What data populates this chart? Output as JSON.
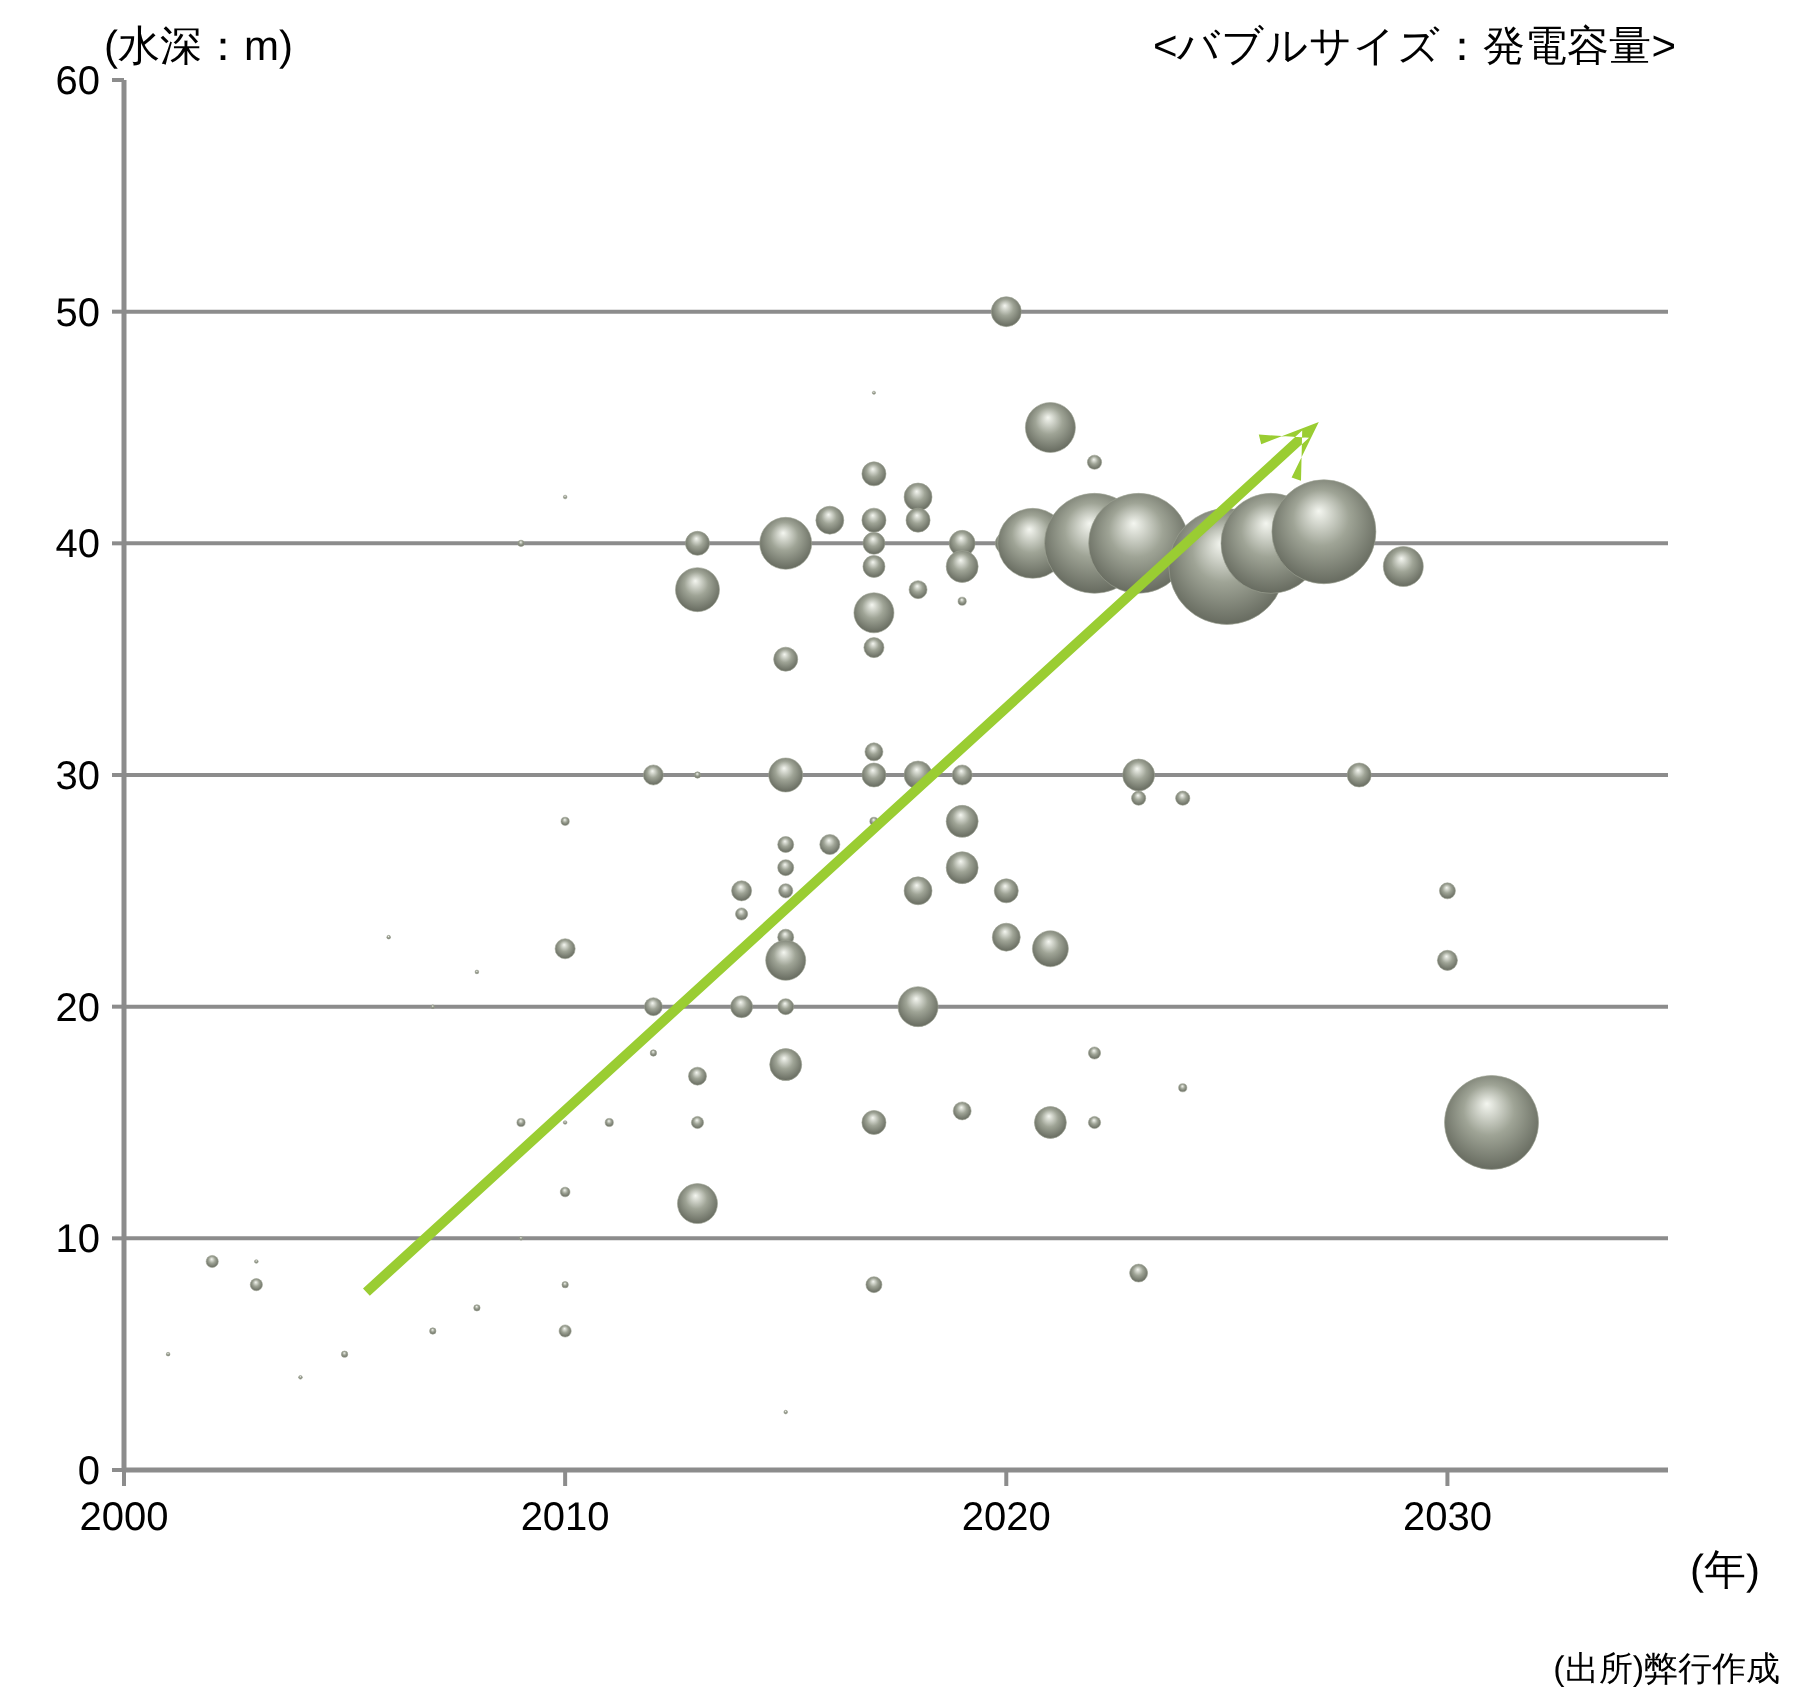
{
  "chart_data": {
    "type": "bubble",
    "subtitle": "<バブルサイズ：発電容量>",
    "ylabel": "(水深：m)",
    "xlabel": "(年)",
    "annotations": [
      "(出所)弊行作成"
    ],
    "xlim": [
      2000,
      2035
    ],
    "xticks": [
      2000,
      2010,
      2020,
      2030
    ],
    "ylim": [
      0,
      60
    ],
    "yticks": [
      0,
      10,
      20,
      30,
      40,
      50,
      60
    ],
    "grid": "y",
    "series": [
      {
        "color": "#9fa496",
        "x": [
          2002,
          2003,
          2003,
          2001,
          2004,
          2005,
          2006,
          2007,
          2007,
          2008,
          2008,
          2009,
          2009,
          2009,
          2010,
          2010,
          2010,
          2010,
          2010,
          2010,
          2010,
          2011,
          2012,
          2012,
          2012,
          2013,
          2013,
          2013,
          2013,
          2013,
          2013,
          2014,
          2014,
          2014,
          2015,
          2015,
          2015,
          2015,
          2015,
          2015,
          2015,
          2015,
          2015,
          2015,
          2015,
          2016,
          2016,
          2017,
          2017,
          2017,
          2017,
          2017,
          2017,
          2017,
          2017,
          2017,
          2017,
          2017,
          2017,
          2018,
          2018,
          2018,
          2018,
          2018,
          2018,
          2019,
          2019,
          2019,
          2019,
          2019,
          2019,
          2019,
          2020,
          2020,
          2020,
          2020,
          2021,
          2021,
          2021,
          2020.6,
          2022,
          2022,
          2022,
          2023,
          2023,
          2023,
          2024,
          2024,
          2022,
          2023,
          2025,
          2026,
          2027.2,
          2028,
          2029,
          2030,
          2030,
          2031
        ],
        "values": [
          9,
          8,
          9,
          5,
          4,
          5,
          23,
          20,
          6,
          21.5,
          7,
          40,
          15,
          10,
          42,
          28,
          22.5,
          15,
          12,
          8,
          6,
          15,
          30,
          20,
          18,
          40,
          38,
          30,
          17,
          15,
          11.5,
          25,
          24,
          20,
          40,
          35,
          30,
          27,
          26,
          25,
          23,
          22,
          20,
          17.5,
          2.5,
          41,
          27,
          46.5,
          43,
          41,
          40,
          39,
          37,
          35.5,
          31,
          30,
          28,
          15,
          8,
          42,
          41,
          38,
          30,
          25,
          20,
          40,
          39,
          37.5,
          30,
          28,
          26,
          15.5,
          50,
          40,
          25,
          23,
          45,
          22.5,
          15,
          40,
          43.5,
          18,
          15,
          30,
          8.5,
          29,
          29,
          16.5,
          40,
          40,
          39,
          40,
          40.5,
          30,
          39,
          25,
          22,
          15
        ],
        "sizes": [
          0.011,
          0.011,
          0.001,
          0.001,
          0.001,
          0.003,
          0.001,
          0.001,
          0.003,
          0.001,
          0.003,
          0.003,
          0.005,
          0.001,
          0.001,
          0.005,
          0.03,
          0.001,
          0.007,
          0.003,
          0.011,
          0.005,
          0.03,
          0.024,
          0.003,
          0.043,
          0.144,
          0.003,
          0.024,
          0.011,
          0.119,
          0.03,
          0.011,
          0.036,
          0.201,
          0.043,
          0.086,
          0.019,
          0.019,
          0.015,
          0.019,
          0.119,
          0.019,
          0.076,
          0.001,
          0.058,
          0.03,
          0.0003,
          0.043,
          0.043,
          0.036,
          0.036,
          0.119,
          0.03,
          0.024,
          0.043,
          0.005,
          0.043,
          0.019,
          0.058,
          0.043,
          0.024,
          0.058,
          0.058,
          0.119,
          0.05,
          0.076,
          0.005,
          0.03,
          0.076,
          0.076,
          0.024,
          0.067,
          0.036,
          0.043,
          0.058,
          0.186,
          0.096,
          0.076,
          0.364,
          0.015,
          0.011,
          0.011,
          0.076,
          0.024,
          0.015,
          0.015,
          0.005,
          0.743,
          0.743,
          1,
          0.743,
          0.804,
          0.043,
          0.119,
          0.019,
          0.03,
          0.657
        ]
      }
    ]
  }
}
